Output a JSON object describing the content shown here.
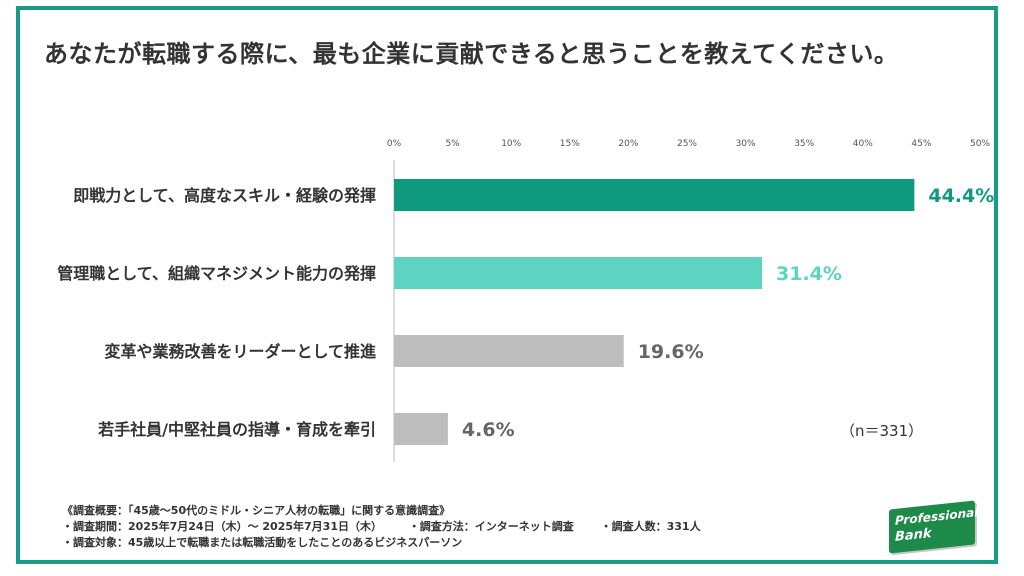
{
  "title": "あなたが転職する際に、最も企業に貢献できると思うことを教えてください。",
  "sample_note": "（n＝331）",
  "footer": {
    "line1": "《調査概要：「45歳〜50代のミドル・シニア人材の転職」に関する意識調査》",
    "line2a": "・調査期間：2025年7月24日（木）〜 2025年7月31日（木）",
    "line2b": "・調査方法：インターネット調査",
    "line2c": "・調査人数：331人",
    "line3": "・調査対象：45歳以上で転職または転職活動をしたことのあるビジネスパーソン"
  },
  "logo": {
    "line1": "Professional",
    "line2": "Bank"
  },
  "colors": {
    "frame": "#1a9b85",
    "bar1": "#0f9a7e",
    "bar2": "#5fd3c1",
    "bar_gray": "#bdbdbd",
    "val1": "#0f9a7e",
    "val2": "#5fd3c1",
    "val_gray": "#666666"
  },
  "chart_data": {
    "type": "bar",
    "orientation": "horizontal",
    "categories": [
      "即戦力として、高度なスキル・経験の発揮",
      "管理職として、組織マネジメント能力の発揮",
      "変革や業務改善をリーダーとして推進",
      "若手社員/中堅社員の指導・育成を牽引"
    ],
    "values": [
      44.4,
      31.4,
      19.6,
      4.6
    ],
    "value_labels": [
      "44.4%",
      "31.4%",
      "19.6%",
      "4.6%"
    ],
    "xlim": [
      0,
      50
    ],
    "ticks": [
      "0%",
      "5%",
      "10%",
      "15%",
      "20%",
      "25%",
      "30%",
      "35%",
      "40%",
      "45%",
      "50%"
    ],
    "tick_values": [
      0,
      5,
      10,
      15,
      20,
      25,
      30,
      35,
      40,
      45,
      50
    ],
    "grid": false
  }
}
